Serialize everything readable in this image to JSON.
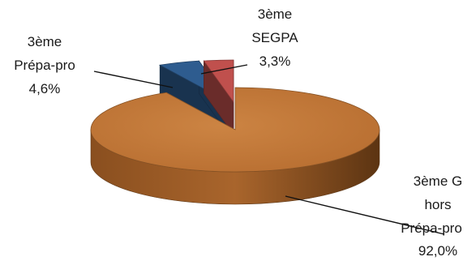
{
  "chart_data": {
    "type": "pie",
    "three_d": true,
    "exploded": true,
    "categories": [
      "3ème G hors Prépa-pro",
      "3ème Prépa-pro",
      "3ème SEGPA"
    ],
    "values": [
      92.0,
      4.6,
      3.3
    ],
    "value_labels": [
      "92,0%",
      "4,6%",
      "3,3%"
    ],
    "label_lines": {
      "g": [
        "3ème G",
        "hors",
        "Prépa-pro",
        "92,0%"
      ],
      "prepa": [
        "3ème",
        "Prépa-pro",
        "4,6%"
      ],
      "segpa": [
        "3ème",
        "SEGPA",
        "3,3%"
      ]
    },
    "colors": [
      "#c07535",
      "#2e5c8f",
      "#c0504d"
    ],
    "title": "",
    "legend": "none"
  }
}
